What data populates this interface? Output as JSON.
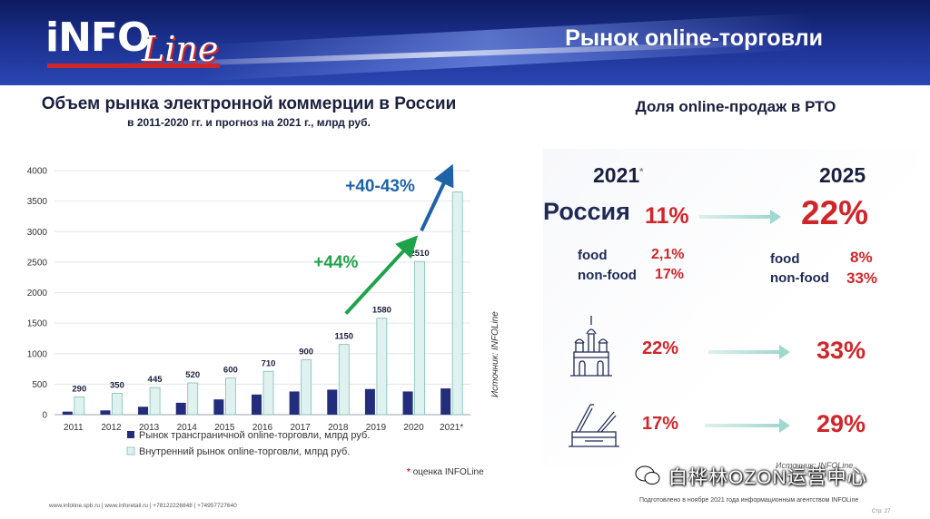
{
  "header": {
    "logo_info": "iNFO",
    "logo_line": "Line",
    "title": "Рынок online-торговли"
  },
  "left": {
    "title": "Объем рынка электронной коммерции в России",
    "subtitle": "в 2011-2020 гг. и прогноз на 2021 г., млрд руб.",
    "source": "Источник: INFOLine",
    "note_star": "*",
    "note": "оценка INFOLine"
  },
  "chart_data": {
    "type": "bar",
    "categories": [
      "2011",
      "2012",
      "2013",
      "2014",
      "2015",
      "2016",
      "2017",
      "2018",
      "2019",
      "2020",
      "2021*"
    ],
    "series": [
      {
        "name": "Рынок трансграничной online-торговли, млрд руб.",
        "color": "#232d7c",
        "values": [
          50,
          70,
          130,
          195,
          250,
          330,
          380,
          410,
          420,
          380,
          430
        ]
      },
      {
        "name": "Внутренний рынок online-торговли, млрд руб.",
        "color": "#dff2f0",
        "values": [
          290,
          350,
          445,
          520,
          600,
          710,
          900,
          1150,
          1580,
          2510,
          3650
        ]
      }
    ],
    "data_labels": [
      "290",
      "350",
      "445",
      "520",
      "600",
      "710",
      "900",
      "1150",
      "1580",
      "2510",
      ""
    ],
    "yticks": [
      "0",
      "500",
      "1000",
      "1500",
      "2000",
      "2500",
      "3000",
      "3500",
      "4000"
    ],
    "ylim": [
      0,
      4000
    ],
    "grid": true,
    "legend_position": "bottom",
    "annotations": [
      {
        "text": "+44%",
        "color": "#1fa34a",
        "from": "2018",
        "to": "2020"
      },
      {
        "text": "+40-43%",
        "color": "#1e63a8",
        "from": "2020",
        "to": "2021*"
      }
    ]
  },
  "right": {
    "title": "Доля online-продаж в РТО",
    "year_from": "2021",
    "year_from_mark": "*",
    "year_to": "2025",
    "country": "Россия",
    "russia_from": "11%",
    "russia_to": "22%",
    "food_label": "food",
    "nonfood_label": "non-food",
    "food_from": "2,1%",
    "nonfood_from": "17%",
    "food_to": "8%",
    "nonfood_to": "33%",
    "moscow_from": "22%",
    "moscow_to": "33%",
    "spb_from": "17%",
    "spb_to": "29%",
    "source": "Источник: INFOLine",
    "watermark": "白桦林OZON运营中心"
  },
  "footer": {
    "links": "www.infoline.spb.ru | www.inforetail.ru | +78122226848 | +74957727640",
    "prepared": "Подготовлено в ноябре 2021 года информационным агентством INFOLine",
    "page": "Стр. 27"
  }
}
